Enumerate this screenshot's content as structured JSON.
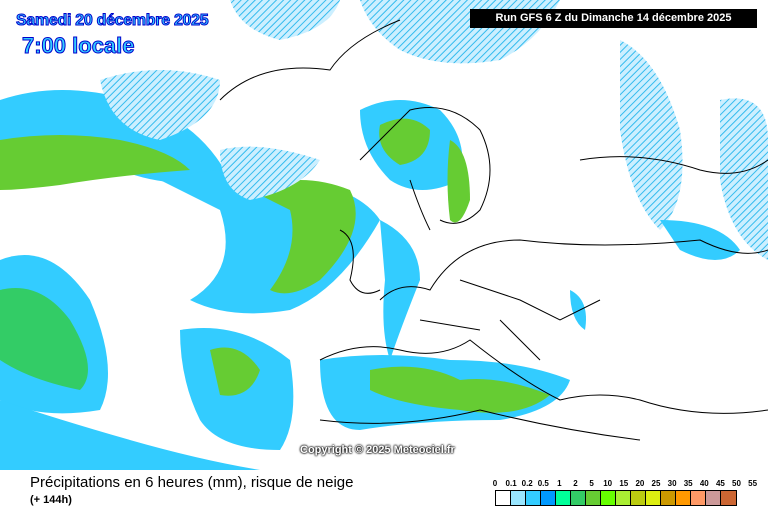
{
  "header": {
    "date": "Samedi 20 décembre 2025",
    "time": "7:00 locale",
    "run": "Run GFS 6 Z du Dimanche 14 décembre 2025"
  },
  "copyright": "Copyright © 2025 Meteociel.fr",
  "caption": {
    "title": "Précipitations en 6 heures (mm), risque de neige",
    "offset": "(+ 144h)"
  },
  "legend": {
    "labels": [
      "0",
      "0.1",
      "0.2",
      "0.5",
      "1",
      "2",
      "5",
      "10",
      "15",
      "20",
      "25",
      "30",
      "35",
      "40",
      "45",
      "50",
      "55"
    ],
    "colors": [
      "#ffffff",
      "#99e6ff",
      "#33ccff",
      "#0099ff",
      "#00ff99",
      "#33cc66",
      "#66cc33",
      "#66ff00",
      "#aaee33",
      "#bbcc11",
      "#ddee11",
      "#cc9900",
      "#ff9900",
      "#ff9966",
      "#cc9999",
      "#cc6633",
      "#cc3333"
    ]
  }
}
